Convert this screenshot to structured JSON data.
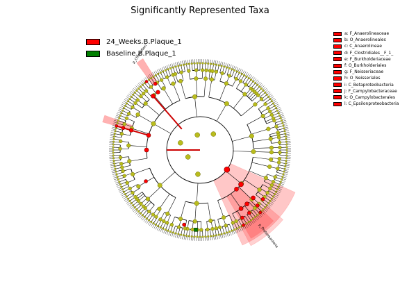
{
  "title": "Significantly Represented Taxa",
  "colors": {
    "group1": "#ff0000",
    "group2": "#008000",
    "node_fill": "#b9bc1d",
    "node_stroke": "#6d6d00"
  },
  "groups": [
    {
      "label": "24_Weeks.B.Plaque_1",
      "color": "#ff0000"
    },
    {
      "label": "Baseline.B.Plaque_1",
      "color": "#008000"
    }
  ],
  "taxa_legend": [
    {
      "label": "a: F_Anaerolineaceae"
    },
    {
      "label": "b: O_Anaerolineales"
    },
    {
      "label": "c: C_Anaerolineae"
    },
    {
      "label": "d: F_Clostridiales__F_1_"
    },
    {
      "label": "e: F_Burkholderiaceae"
    },
    {
      "label": "f: O_Burkholderiales"
    },
    {
      "label": "g: F_Neisseriaceae"
    },
    {
      "label": "h: O_Neisseriales"
    },
    {
      "label": "i: C_Betaproteobacteria"
    },
    {
      "label": "j: F_Campylobacteraceae"
    },
    {
      "label": "k: O_Campylobacterales"
    },
    {
      "label": "l: C_Epsilonproteobacteria"
    }
  ],
  "clade_labels": [
    {
      "label": "p_Chloroflexi"
    },
    {
      "label": "p_Proteobacteria"
    }
  ]
}
